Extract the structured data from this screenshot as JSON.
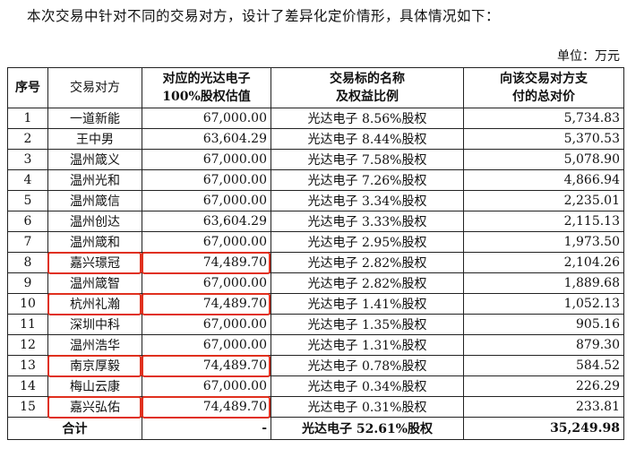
{
  "intro_text": "本次交易中针对不同的交易对方，设计了差异化定价情形，具体情况如下：",
  "unit_label": "单位：万元",
  "headers": {
    "seq": "序号",
    "counterparty": "交易对方",
    "valuation_line1": "对应的光达电子",
    "valuation_line2": "100%股权估值",
    "target_line1": "交易标的名称",
    "target_line2": "及权益比例",
    "payment_line1": "向该交易对方支",
    "payment_line2": "付的总对价"
  },
  "rows": [
    {
      "seq": "1",
      "name": "一道新能",
      "valuation": "67,000.00",
      "target": "光达电子 8.56%股权",
      "payment": "5,734.83"
    },
    {
      "seq": "2",
      "name": "王中男",
      "valuation": "63,604.29",
      "target": "光达电子 8.44%股权",
      "payment": "5,370.53"
    },
    {
      "seq": "3",
      "name": "温州箴义",
      "valuation": "67,000.00",
      "target": "光达电子 7.58%股权",
      "payment": "5,078.90"
    },
    {
      "seq": "4",
      "name": "温州光和",
      "valuation": "67,000.00",
      "target": "光达电子 7.26%股权",
      "payment": "4,866.94"
    },
    {
      "seq": "5",
      "name": "温州箴信",
      "valuation": "67,000.00",
      "target": "光达电子 3.34%股权",
      "payment": "2,235.01"
    },
    {
      "seq": "6",
      "name": "温州创达",
      "valuation": "63,604.29",
      "target": "光达电子 3.33%股权",
      "payment": "2,115.13"
    },
    {
      "seq": "7",
      "name": "温州箴和",
      "valuation": "67,000.00",
      "target": "光达电子 2.95%股权",
      "payment": "1,973.50"
    },
    {
      "seq": "8",
      "name": "嘉兴璟冠",
      "valuation": "74,489.70",
      "target": "光达电子 2.82%股权",
      "payment": "2,104.26"
    },
    {
      "seq": "9",
      "name": "温州箴智",
      "valuation": "67,000.00",
      "target": "光达电子 2.82%股权",
      "payment": "1,889.68"
    },
    {
      "seq": "10",
      "name": "杭州礼瀚",
      "valuation": "74,489.70",
      "target": "光达电子 1.41%股权",
      "payment": "1,052.13"
    },
    {
      "seq": "11",
      "name": "深圳中科",
      "valuation": "67,000.00",
      "target": "光达电子 1.35%股权",
      "payment": "905.16"
    },
    {
      "seq": "12",
      "name": "温州浩华",
      "valuation": "67,000.00",
      "target": "光达电子 1.31%股权",
      "payment": "879.30"
    },
    {
      "seq": "13",
      "name": "南京厚毅",
      "valuation": "74,489.70",
      "target": "光达电子 0.78%股权",
      "payment": "584.52"
    },
    {
      "seq": "14",
      "name": "梅山云康",
      "valuation": "67,000.00",
      "target": "光达电子 0.34%股权",
      "payment": "226.29"
    },
    {
      "seq": "15",
      "name": "嘉兴弘佑",
      "valuation": "74,489.70",
      "target": "光达电子 0.31%股权",
      "payment": "233.81"
    }
  ],
  "total": {
    "label": "合计",
    "valuation": "-",
    "target": "光达电子 52.61%股权",
    "payment": "35,249.98"
  },
  "highlight_color": "#e0301e"
}
